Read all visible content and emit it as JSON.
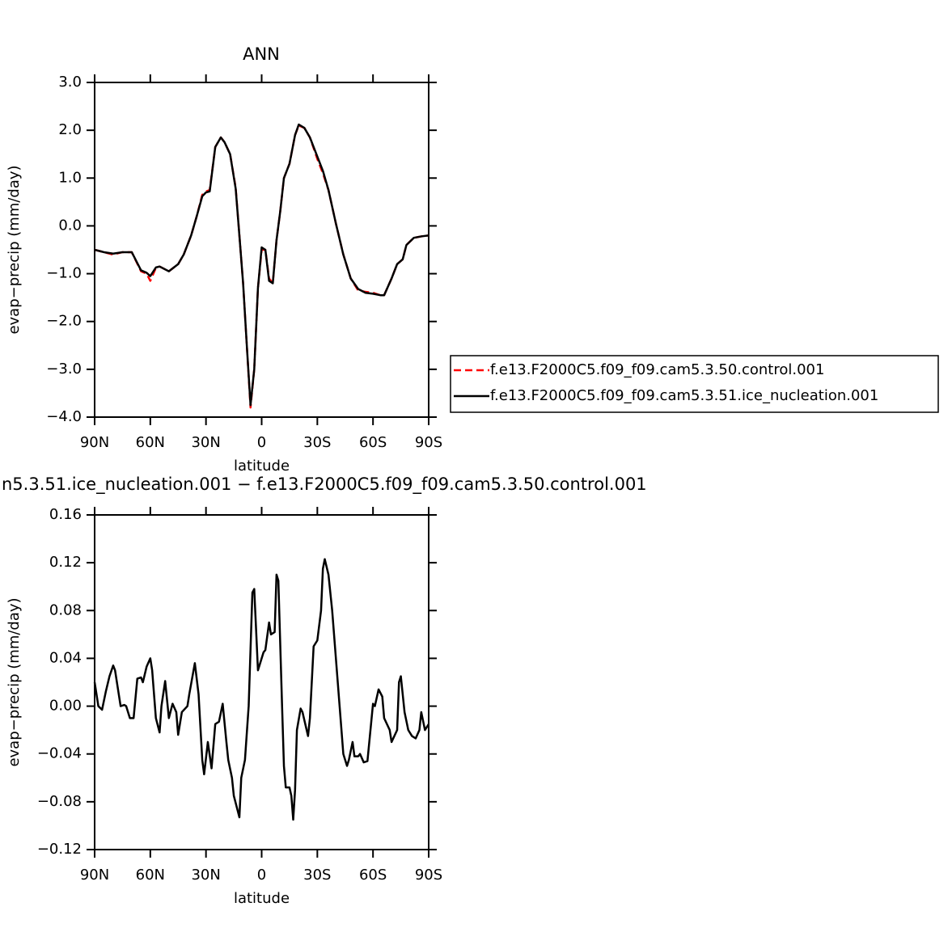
{
  "chart_data": [
    {
      "type": "line",
      "title": "ANN",
      "xlabel": "latitude",
      "ylabel": "evap−precip (mm/day)",
      "x": [
        90,
        85,
        80,
        75,
        70,
        65,
        62,
        60,
        57,
        55,
        50,
        45,
        42,
        38,
        35,
        32,
        30,
        28,
        25,
        22,
        20,
        17,
        14,
        12,
        10,
        8,
        6,
        4,
        2,
        0,
        -2,
        -4,
        -6,
        -8,
        -10,
        -12,
        -15,
        -18,
        -20,
        -23,
        -26,
        -30,
        -33,
        -36,
        -40,
        -44,
        -48,
        -52,
        -56,
        -60,
        -64,
        -66,
        -70,
        -73,
        -76,
        -78,
        -82,
        -86,
        -90
      ],
      "series": [
        {
          "name": "f.e13.F2000C5.f09_f09.cam5.3.50.control.001",
          "color": "#ff0000",
          "dashed": true,
          "values": [
            -0.5,
            -0.55,
            -0.6,
            -0.55,
            -0.55,
            -0.95,
            -1.0,
            -1.15,
            -0.88,
            -0.85,
            -0.95,
            -0.8,
            -0.6,
            -0.2,
            0.2,
            0.65,
            0.72,
            0.75,
            1.65,
            1.85,
            1.75,
            1.5,
            0.8,
            -0.2,
            -1.2,
            -2.5,
            -3.8,
            -3.0,
            -1.3,
            -0.5,
            -0.5,
            -1.1,
            -1.2,
            -0.3,
            0.3,
            1.0,
            1.3,
            1.9,
            2.1,
            2.05,
            1.85,
            1.4,
            1.1,
            0.75,
            0.05,
            -0.6,
            -1.1,
            -1.35,
            -1.38,
            -1.4,
            -1.45,
            -1.45,
            -1.1,
            -0.8,
            -0.7,
            -0.4,
            -0.25,
            -0.22,
            -0.2
          ]
        },
        {
          "name": "f.e13.F2000C5.f09_f09.cam5.3.51.ice_nucleation.001",
          "color": "#000000",
          "dashed": false,
          "values": [
            -0.5,
            -0.55,
            -0.58,
            -0.55,
            -0.55,
            -0.93,
            -0.98,
            -1.05,
            -0.87,
            -0.85,
            -0.95,
            -0.8,
            -0.6,
            -0.2,
            0.2,
            0.62,
            0.7,
            0.72,
            1.65,
            1.85,
            1.75,
            1.5,
            0.78,
            -0.2,
            -1.2,
            -2.5,
            -3.75,
            -3.0,
            -1.3,
            -0.45,
            -0.5,
            -1.15,
            -1.2,
            -0.3,
            0.3,
            1.0,
            1.3,
            1.9,
            2.12,
            2.05,
            1.85,
            1.45,
            1.15,
            0.75,
            0.05,
            -0.6,
            -1.1,
            -1.32,
            -1.4,
            -1.42,
            -1.45,
            -1.45,
            -1.1,
            -0.8,
            -0.7,
            -0.4,
            -0.25,
            -0.22,
            -0.2
          ]
        }
      ],
      "xlim": [
        90,
        -90
      ],
      "xticks": [
        {
          "value": 90,
          "label": "90N"
        },
        {
          "value": 60,
          "label": "60N"
        },
        {
          "value": 30,
          "label": "30N"
        },
        0,
        {
          "value": -30,
          "label": "30S"
        },
        {
          "value": -60,
          "label": "60S"
        },
        {
          "value": -90,
          "label": "90S"
        }
      ],
      "ylim": [
        -4,
        3
      ],
      "yticks": [
        {
          "value": 3,
          "label": "3.0"
        },
        {
          "value": 2,
          "label": "2.0"
        },
        {
          "value": 1,
          "label": "1.0"
        },
        {
          "value": 0,
          "label": "0.0"
        },
        {
          "value": -1,
          "label": "−1.0"
        },
        {
          "value": -2,
          "label": "−2.0"
        },
        {
          "value": -3,
          "label": "−3.0"
        },
        {
          "value": -4,
          "label": "−4.0"
        }
      ],
      "legend": "right"
    },
    {
      "type": "line",
      "title": "n5.3.51.ice_nucleation.001 − f.e13.F2000C5.f09_f09.cam5.3.50.control.001",
      "xlabel": "latitude",
      "ylabel": "evap−precip (mm/day)",
      "x": [
        90,
        88,
        86,
        84,
        82,
        80,
        79,
        77,
        76,
        74,
        73,
        71,
        69,
        67,
        65,
        64,
        62,
        60,
        59,
        57,
        55,
        54,
        52,
        50,
        48,
        46,
        45,
        43,
        40,
        39,
        36,
        34,
        32,
        31,
        29,
        27,
        25,
        23,
        21,
        19,
        18,
        16,
        15,
        12,
        11,
        9,
        7,
        5,
        4,
        2,
        1,
        -1,
        -2,
        -4,
        -5,
        -7,
        -8,
        -9,
        -11,
        -12,
        -13,
        -15,
        -16,
        -17,
        -18,
        -19,
        -21,
        -22,
        -25,
        -26,
        -28,
        -30,
        -32,
        -33,
        -34,
        -36,
        -38,
        -40,
        -42,
        -44,
        -46,
        -47,
        -49,
        -50,
        -52,
        -53,
        -55,
        -57,
        -58,
        -60,
        -61,
        -63,
        -65,
        -66,
        -69,
        -70,
        -73,
        -74,
        -75,
        -77,
        -79,
        -81,
        -83,
        -85,
        -86,
        -88,
        -90
      ],
      "values": [
        0.02,
        0.0,
        -0.003,
        0.012,
        0.025,
        0.034,
        0.03,
        0.01,
        0.0,
        0.001,
        0.0,
        -0.01,
        -0.01,
        0.023,
        0.024,
        0.02,
        0.033,
        0.04,
        0.03,
        -0.01,
        -0.022,
        0.0,
        0.021,
        -0.01,
        0.002,
        -0.005,
        -0.024,
        -0.005,
        0.0,
        0.01,
        0.036,
        0.01,
        -0.045,
        -0.057,
        -0.03,
        -0.052,
        -0.015,
        -0.013,
        0.002,
        -0.03,
        -0.045,
        -0.06,
        -0.075,
        -0.093,
        -0.06,
        -0.045,
        0.0,
        0.095,
        0.098,
        0.03,
        0.035,
        0.045,
        0.047,
        0.07,
        0.06,
        0.062,
        0.11,
        0.105,
        0.0,
        -0.05,
        -0.068,
        -0.068,
        -0.075,
        -0.095,
        -0.07,
        -0.02,
        -0.002,
        -0.005,
        -0.025,
        -0.01,
        0.05,
        0.055,
        0.08,
        0.115,
        0.123,
        0.11,
        0.08,
        0.04,
        0.0,
        -0.04,
        -0.05,
        -0.045,
        -0.03,
        -0.042,
        -0.042,
        -0.04,
        -0.047,
        -0.046,
        -0.03,
        0.002,
        0.0,
        0.014,
        0.008,
        -0.01,
        -0.02,
        -0.03,
        -0.02,
        0.02,
        0.025,
        -0.005,
        -0.02,
        -0.025,
        -0.027,
        -0.02,
        -0.005,
        -0.02,
        -0.015
      ],
      "color": "#000000",
      "xlim": [
        90,
        -90
      ],
      "xticks": [
        {
          "value": 90,
          "label": "90N"
        },
        {
          "value": 60,
          "label": "60N"
        },
        {
          "value": 30,
          "label": "30N"
        },
        0,
        {
          "value": -30,
          "label": "30S"
        },
        {
          "value": -60,
          "label": "60S"
        },
        {
          "value": -90,
          "label": "90S"
        }
      ],
      "ylim": [
        -0.12,
        0.16
      ],
      "yticks": [
        0.16,
        0.12,
        0.08,
        0.04,
        {
          "value": 0,
          "label": "0.00"
        },
        {
          "value": -0.04,
          "label": "−0.04"
        },
        {
          "value": -0.08,
          "label": "−0.08"
        },
        {
          "value": -0.12,
          "label": "−0.12"
        }
      ]
    }
  ]
}
